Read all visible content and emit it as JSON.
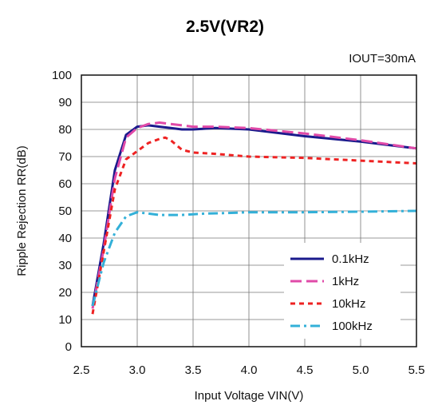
{
  "chart_data": {
    "type": "line",
    "title": "2.5V(VR2)",
    "annotation": "IOUT=30mA",
    "xlabel": "Input Voltage VIN(V)",
    "ylabel": "Ripple Rejection RR(dB)",
    "xlim": [
      2.5,
      5.5
    ],
    "ylim": [
      0,
      100
    ],
    "xticks": [
      "2.5",
      "3.0",
      "3.5",
      "4.0",
      "4.5",
      "5.0",
      "5.5"
    ],
    "yticks": [
      "0",
      "10",
      "20",
      "30",
      "40",
      "50",
      "60",
      "70",
      "80",
      "90",
      "100"
    ],
    "grid": true,
    "legend_position": "bottom-right",
    "series": [
      {
        "name": "0.1kHz",
        "color": "#1a1a8c",
        "dash": "solid",
        "x": [
          2.6,
          2.7,
          2.8,
          2.9,
          3.0,
          3.1,
          3.2,
          3.3,
          3.4,
          3.5,
          3.7,
          4.0,
          4.5,
          5.0,
          5.5
        ],
        "y": [
          15,
          38,
          65,
          78,
          81,
          81.5,
          81,
          80.5,
          80,
          80,
          80.5,
          80,
          77.5,
          75.5,
          73
        ]
      },
      {
        "name": "1kHz",
        "color": "#e04aa8",
        "dash": "long",
        "x": [
          2.6,
          2.7,
          2.8,
          2.9,
          3.0,
          3.1,
          3.2,
          3.3,
          3.4,
          3.5,
          3.7,
          4.0,
          4.5,
          5.0,
          5.5
        ],
        "y": [
          14,
          36,
          62,
          77,
          80.5,
          82,
          82.5,
          82,
          81.5,
          81,
          81,
          80.5,
          78.5,
          76,
          73
        ]
      },
      {
        "name": "10kHz",
        "color": "#ee2222",
        "dash": "short",
        "x": [
          2.6,
          2.7,
          2.8,
          2.9,
          3.0,
          3.1,
          3.2,
          3.25,
          3.3,
          3.4,
          3.5,
          3.7,
          4.0,
          4.5,
          5.0,
          5.5
        ],
        "y": [
          12,
          35,
          58,
          69,
          72,
          75,
          76.5,
          77,
          76,
          72.5,
          71.5,
          71,
          70,
          69.5,
          68.5,
          67.5
        ]
      },
      {
        "name": "100kHz",
        "color": "#33b0d8",
        "dash": "dashdot",
        "x": [
          2.6,
          2.7,
          2.8,
          2.9,
          3.0,
          3.1,
          3.2,
          3.4,
          3.6,
          3.8,
          4.0,
          4.5,
          5.0,
          5.5
        ],
        "y": [
          15,
          31,
          42,
          48,
          49.5,
          49,
          48.5,
          48.5,
          49,
          49.2,
          49.5,
          49.5,
          49.7,
          50
        ]
      }
    ]
  }
}
